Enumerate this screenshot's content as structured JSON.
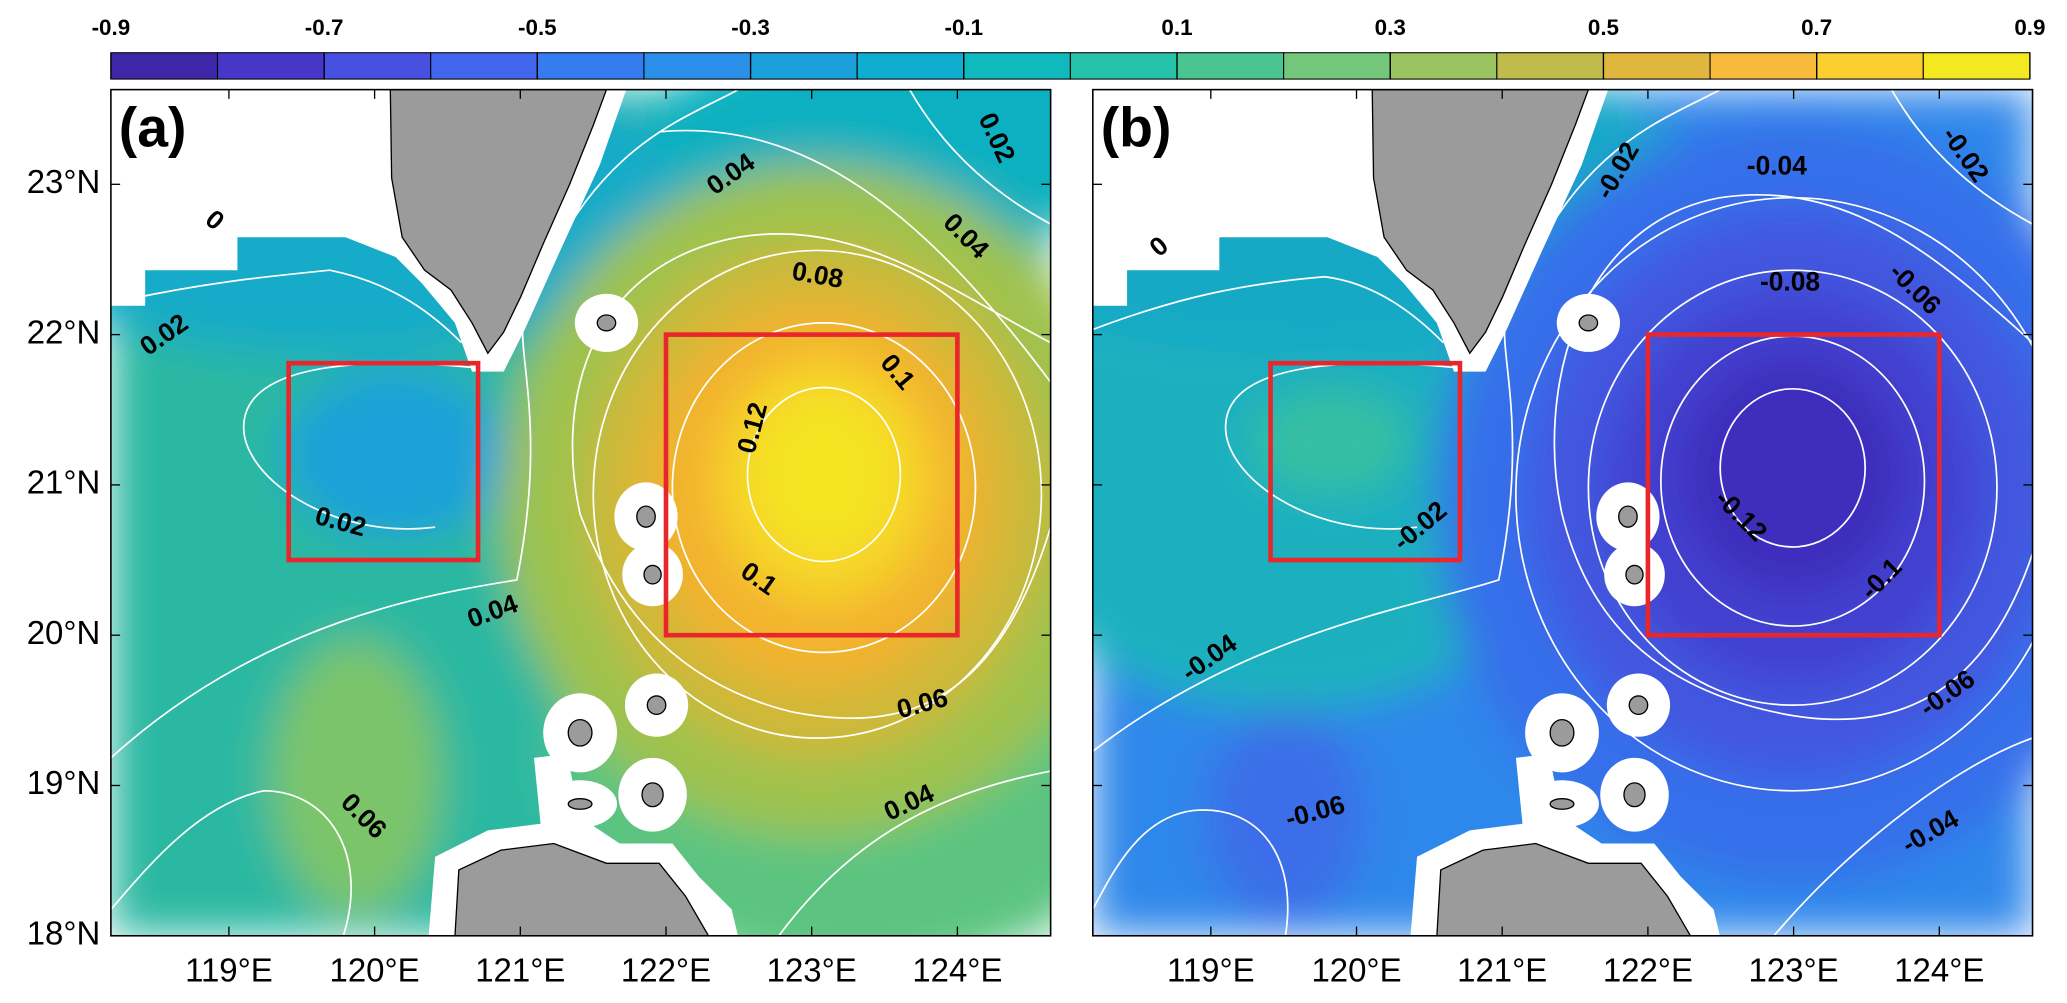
{
  "colorbar": {
    "clim": [
      -0.9,
      0.9
    ],
    "ticks": [
      -0.9,
      -0.7,
      -0.5,
      -0.3,
      -0.1,
      0.1,
      0.3,
      0.5,
      0.7,
      0.9
    ],
    "colors": [
      "#3d26a8",
      "#4637c9",
      "#4750e0",
      "#4366ee",
      "#357cf0",
      "#2a8fe8",
      "#1ca0dc",
      "#0daed0",
      "#0fb9bd",
      "#25c1a8",
      "#4ac592",
      "#74c77a",
      "#9ac462",
      "#c0bc4c",
      "#e0b63e",
      "#f8ba3c",
      "#fbcf2f",
      "#f4e921"
    ]
  },
  "map": {
    "xlim": [
      118.19,
      124.64
    ],
    "ylim": [
      18,
      23.63
    ],
    "xticks": [
      {
        "value": 119,
        "label": "119°E"
      },
      {
        "value": 120,
        "label": "120°E"
      },
      {
        "value": 121,
        "label": "121°E"
      },
      {
        "value": 122,
        "label": "122°E"
      },
      {
        "value": 123,
        "label": "123°E"
      },
      {
        "value": 124,
        "label": "124°E"
      }
    ],
    "yticks": [
      {
        "value": 18,
        "label": "18°N"
      },
      {
        "value": 19,
        "label": "19°N"
      },
      {
        "value": 20,
        "label": "20°N"
      },
      {
        "value": 21,
        "label": "21°N"
      },
      {
        "value": 22,
        "label": "22°N"
      },
      {
        "value": 23,
        "label": "23°N"
      }
    ],
    "boxes": [
      {
        "lon": [
          119.41,
          120.71
        ],
        "lat": [
          20.5,
          21.81
        ]
      },
      {
        "lon": [
          122,
          124
        ],
        "lat": [
          20,
          22
        ]
      }
    ],
    "box_color": "#e8262b"
  },
  "panels": [
    {
      "label": "(a)",
      "contour_labels": [
        0,
        0.02,
        0.04,
        0.02,
        0.04,
        0.08,
        0.1,
        0.12,
        0.02,
        0.1,
        0.04,
        0.06,
        0.06,
        0.04
      ]
    },
    {
      "label": "(b)",
      "contour_labels": [
        0,
        -0.02,
        -0.04,
        -0.02,
        -0.08,
        -0.06,
        -0.02,
        -0.12,
        -0.1,
        -0.04,
        -0.06,
        -0.06,
        -0.04
      ]
    }
  ]
}
